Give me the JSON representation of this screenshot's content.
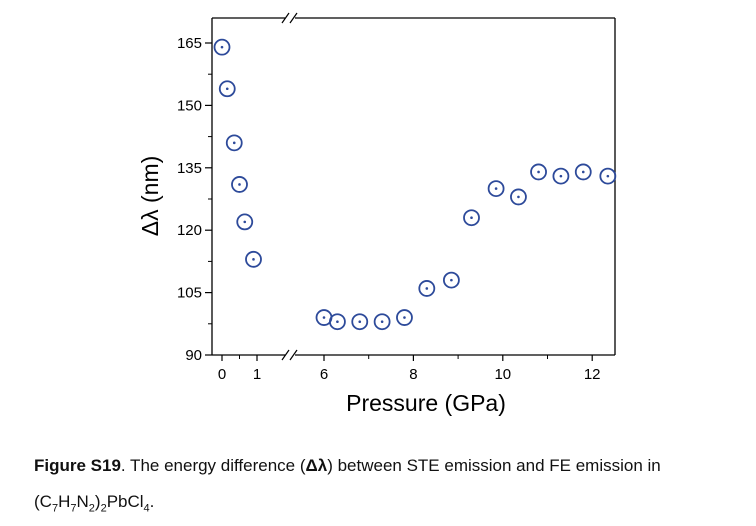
{
  "chart_data": {
    "type": "scatter",
    "xlabel": "Pressure (GPa)",
    "ylabel": "Δλ (nm)",
    "x_ticks": [
      "0",
      "1",
      "6",
      "8",
      "10",
      "12"
    ],
    "y_ticks": [
      "90",
      "105",
      "120",
      "135",
      "150",
      "165"
    ],
    "ylim": [
      90,
      170
    ],
    "axis_break": "between 1 and 6 GPa",
    "marker": "open circle with center dot",
    "marker_color": "#2d4a9a",
    "grid": false,
    "points": [
      {
        "x": 0.0,
        "y": 164
      },
      {
        "x": 0.15,
        "y": 154
      },
      {
        "x": 0.35,
        "y": 141
      },
      {
        "x": 0.5,
        "y": 131
      },
      {
        "x": 0.65,
        "y": 122
      },
      {
        "x": 0.9,
        "y": 113
      },
      {
        "x": 6.0,
        "y": 99
      },
      {
        "x": 6.3,
        "y": 98
      },
      {
        "x": 6.8,
        "y": 98
      },
      {
        "x": 7.3,
        "y": 98
      },
      {
        "x": 7.8,
        "y": 99
      },
      {
        "x": 8.3,
        "y": 106
      },
      {
        "x": 8.85,
        "y": 108
      },
      {
        "x": 9.3,
        "y": 123
      },
      {
        "x": 9.85,
        "y": 130
      },
      {
        "x": 10.35,
        "y": 128
      },
      {
        "x": 10.8,
        "y": 134
      },
      {
        "x": 11.3,
        "y": 133
      },
      {
        "x": 11.8,
        "y": 134
      },
      {
        "x": 12.35,
        "y": 133
      }
    ]
  },
  "caption": {
    "label": "Figure S19",
    "text": ". The energy difference (",
    "symbol": "Δλ",
    "text2": ") between STE emission and FE emission in",
    "formula": [
      "(C",
      "7",
      "H",
      "7",
      "N",
      "2",
      ")",
      "2",
      "PbCl",
      "4",
      "."
    ]
  }
}
